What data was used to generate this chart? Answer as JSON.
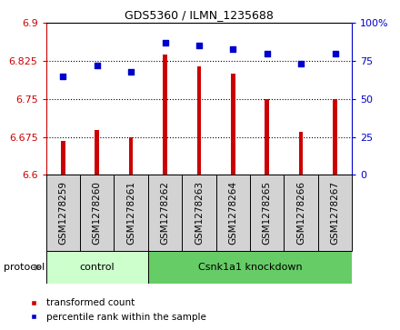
{
  "title": "GDS5360 / ILMN_1235688",
  "samples": [
    "GSM1278259",
    "GSM1278260",
    "GSM1278261",
    "GSM1278262",
    "GSM1278263",
    "GSM1278264",
    "GSM1278265",
    "GSM1278266",
    "GSM1278267"
  ],
  "transformed_count": [
    6.667,
    6.688,
    6.675,
    6.838,
    6.814,
    6.8,
    6.75,
    6.685,
    6.75
  ],
  "percentile_rank": [
    65,
    72,
    68,
    87,
    85,
    83,
    80,
    73,
    80
  ],
  "ylim_left": [
    6.6,
    6.9
  ],
  "ylim_right": [
    0,
    100
  ],
  "yticks_left": [
    6.6,
    6.675,
    6.75,
    6.825,
    6.9
  ],
  "yticks_right": [
    0,
    25,
    50,
    75,
    100
  ],
  "bar_color": "#CC0000",
  "dot_color": "#0000CC",
  "left_axis_color": "#CC0000",
  "right_axis_color": "#0000CC",
  "control_color": "#CCFFCC",
  "knockdown_color": "#66CC66",
  "label_bg_color": "#D3D3D3",
  "n_control": 3,
  "n_total": 9,
  "protocol_label_control": "control",
  "protocol_label_knockdown": "Csnk1a1 knockdown",
  "legend_label_bar": "transformed count",
  "legend_label_dot": "percentile rank within the sample"
}
